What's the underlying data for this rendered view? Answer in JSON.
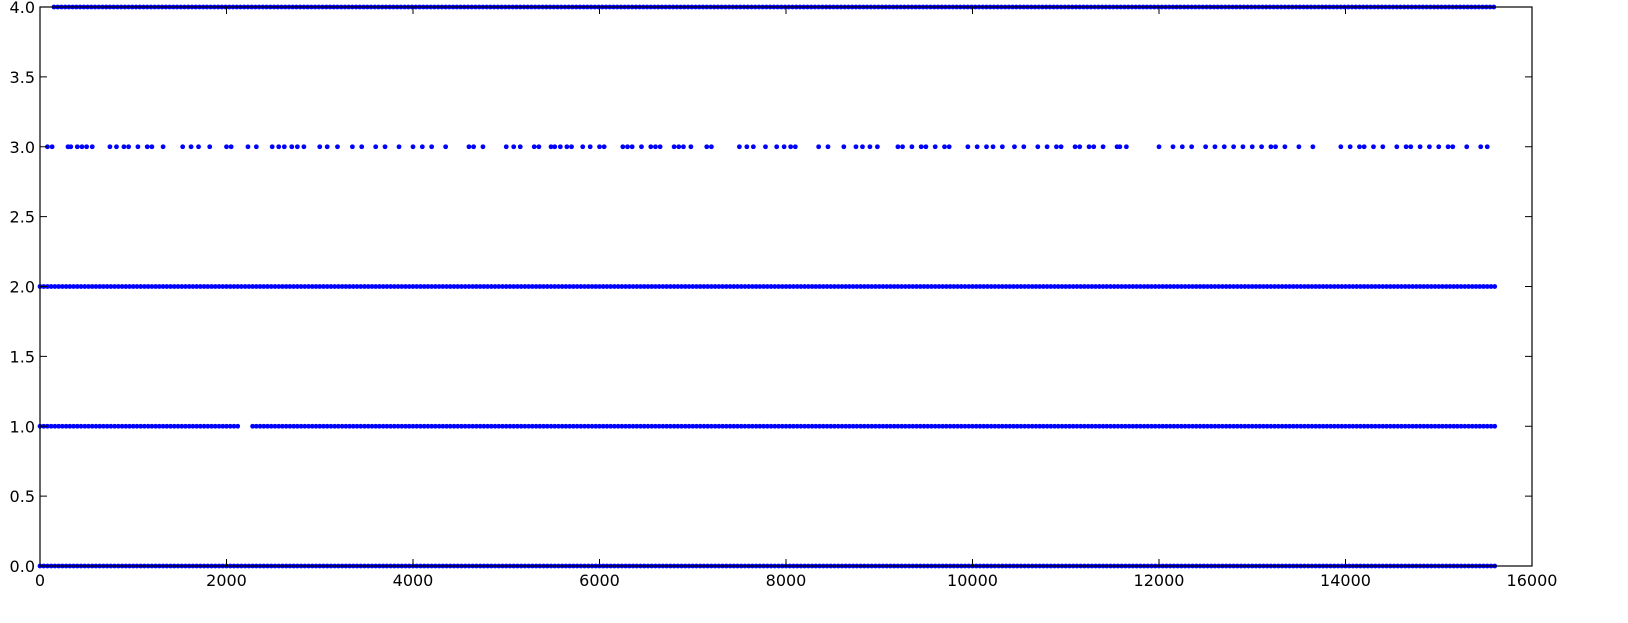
{
  "chart_data": {
    "type": "scatter",
    "title": "",
    "xlabel": "",
    "ylabel": "",
    "xlim": [
      0,
      16000
    ],
    "ylim": [
      0.0,
      4.0
    ],
    "x_ticks": [
      0,
      2000,
      4000,
      6000,
      8000,
      10000,
      12000,
      14000,
      16000
    ],
    "x_tick_labels": [
      "0",
      "2000",
      "4000",
      "6000",
      "8000",
      "10000",
      "12000",
      "14000",
      "16000"
    ],
    "y_ticks": [
      0.0,
      0.5,
      1.0,
      1.5,
      2.0,
      2.5,
      3.0,
      3.5,
      4.0
    ],
    "y_tick_labels": [
      "0.0",
      "0.5",
      "1.0",
      "1.5",
      "2.0",
      "2.5",
      "3.0",
      "3.5",
      "4.0"
    ],
    "grid": false,
    "legend": "none",
    "marker_color": "#0000ff",
    "x_max_data": 15600,
    "series": [
      {
        "y": 0,
        "segments": [
          [
            0,
            15600
          ]
        ]
      },
      {
        "y": 1,
        "segments": [
          [
            0,
            2150
          ],
          [
            2280,
            15600
          ]
        ]
      },
      {
        "y": 2,
        "segments": [
          [
            0,
            15600
          ]
        ]
      },
      {
        "y": 3,
        "points": [
          80,
          130,
          300,
          330,
          400,
          450,
          500,
          560,
          750,
          820,
          900,
          950,
          1050,
          1150,
          1200,
          1320,
          1530,
          1620,
          1700,
          1820,
          2000,
          2050,
          2230,
          2320,
          2490,
          2560,
          2620,
          2700,
          2760,
          2830,
          3000,
          3080,
          3190,
          3350,
          3450,
          3600,
          3700,
          3850,
          4000,
          4100,
          4200,
          4350,
          4600,
          4650,
          4750,
          5000,
          5080,
          5150,
          5300,
          5350,
          5480,
          5520,
          5580,
          5650,
          5700,
          5820,
          5900,
          6000,
          6050,
          6250,
          6300,
          6350,
          6450,
          6550,
          6600,
          6650,
          6800,
          6850,
          6900,
          6980,
          7150,
          7200,
          7500,
          7580,
          7650,
          7780,
          7900,
          7980,
          8050,
          8100,
          8350,
          8450,
          8620,
          8750,
          8820,
          8900,
          8980,
          9200,
          9250,
          9350,
          9450,
          9500,
          9600,
          9700,
          9750,
          9950,
          10050,
          10150,
          10220,
          10320,
          10450,
          10550,
          10700,
          10800,
          10900,
          10950,
          11100,
          11150,
          11250,
          11300,
          11400,
          11550,
          11580,
          11650,
          12000,
          12150,
          12250,
          12350,
          12500,
          12600,
          12700,
          12800,
          12900,
          13000,
          13100,
          13200,
          13250,
          13350,
          13500,
          13650,
          13950,
          14050,
          14150,
          14200,
          14300,
          14400,
          14550,
          14650,
          14700,
          14800,
          14900,
          15000,
          15100,
          15150,
          15300,
          15450,
          15520
        ]
      },
      {
        "y": 4,
        "segments": [
          [
            150,
            15600
          ]
        ]
      }
    ]
  }
}
